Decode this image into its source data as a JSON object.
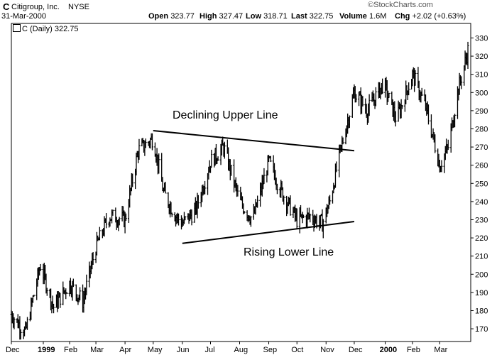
{
  "header": {
    "symbol": "C",
    "company": "Citigroup, Inc.",
    "exchange": "NYSE",
    "date": "31-Mar-2000",
    "open_label": "Open",
    "open": "323.77",
    "high_label": "High",
    "high": "327.47",
    "low_label": "Low",
    "low": "318.71",
    "last_label": "Last",
    "last": "322.75",
    "volume_label": "Volume",
    "volume": "1.6M",
    "chg_label": "Chg",
    "chg": "+2.02 (+0.63%)",
    "watermark": "©StockCharts.com",
    "legend": "C (Daily) 322.75"
  },
  "chart_data": {
    "type": "bar",
    "title": "",
    "series": [
      {
        "name": "C (Daily)",
        "x": [
          "1998-12-01",
          "1998-12-16",
          "1999-01-01",
          "1999-01-15",
          "1999-02-01",
          "1999-02-15",
          "1999-03-01",
          "1999-03-15",
          "1999-04-01",
          "1999-04-15",
          "1999-05-01",
          "1999-05-12",
          "1999-05-25",
          "1999-06-01",
          "1999-06-15",
          "1999-07-01",
          "1999-07-15",
          "1999-08-01",
          "1999-08-15",
          "1999-09-01",
          "1999-09-15",
          "1999-10-01",
          "1999-10-15",
          "1999-10-28",
          "1999-11-05",
          "1999-11-15",
          "1999-12-01",
          "1999-12-15",
          "2000-01-01",
          "2000-01-15",
          "2000-02-01",
          "2000-02-15",
          "2000-03-01",
          "2000-03-10",
          "2000-03-20",
          "2000-03-31"
        ],
        "values": [
          178,
          168,
          205,
          182,
          195,
          185,
          215,
          232,
          230,
          268,
          275,
          245,
          232,
          228,
          235,
          262,
          270,
          240,
          230,
          262,
          245,
          230,
          232,
          228,
          240,
          265,
          300,
          290,
          305,
          285,
          310,
          292,
          260,
          270,
          300,
          323
        ]
      }
    ],
    "x_tick_labels": [
      "Dec",
      "1999",
      "Feb",
      "Mar",
      "Apr",
      "May",
      "Jun",
      "Jul",
      "Aug",
      "Sep",
      "Oct",
      "Nov",
      "Dec",
      "2000",
      "Feb",
      "Mar"
    ],
    "y_tick_labels": [
      "170",
      "180",
      "190",
      "200",
      "210",
      "220",
      "230",
      "240",
      "250",
      "260",
      "270",
      "280",
      "290",
      "300",
      "310",
      "320",
      "330"
    ],
    "ylim": [
      163,
      338
    ],
    "grid": false,
    "annotations": [
      {
        "text": "Declining Upper Line",
        "from": {
          "x": "1999-05-01",
          "y": 279
        },
        "to": {
          "x": "1999-12-01",
          "y": 268
        }
      },
      {
        "text": "Rising Lower Line",
        "from": {
          "x": "1999-06-01",
          "y": 217
        },
        "to": {
          "x": "1999-12-01",
          "y": 229
        }
      }
    ]
  }
}
